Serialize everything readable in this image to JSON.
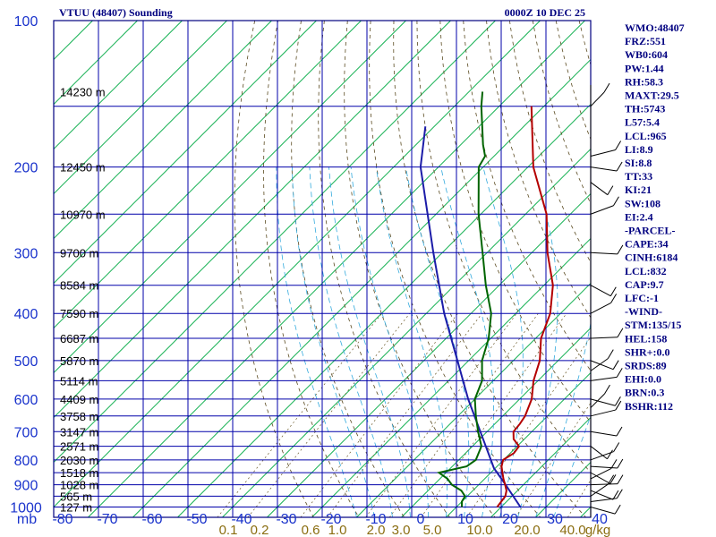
{
  "header": {
    "station": "VTUU (48407) Sounding",
    "time": "0000Z 10 DEC 25"
  },
  "indices": [
    "WMO:48407",
    "FRZ:551",
    "WB0:604",
    "PW:1.44",
    "RH:58.3",
    "MAXT:29.5",
    "TH:5743",
    "L57:5.4",
    "LCL:965",
    "LI:8.9",
    "SI:8.8",
    "TT:33",
    "KI:21",
    "SW:108",
    "EI:2.4",
    "-PARCEL-",
    "CAPE:34",
    "CINH:6184",
    "LCL:832",
    "CAP:9.7",
    "LFC:-1",
    "-WIND-",
    "STM:135/15",
    "HEL:158",
    "SHR+:0.0",
    "SRDS:89",
    "EHI:0.0",
    "BRN:0.3",
    "BSHR:112"
  ],
  "chart_data": {
    "type": "skew-t",
    "title": "VTUU (48407) Sounding",
    "ylabel": "mb",
    "pressure_ticks": [
      100,
      200,
      300,
      400,
      500,
      600,
      700,
      800,
      900,
      1000
    ],
    "pressure_labels": [
      "100",
      "200",
      "300",
      "400",
      "500",
      "600",
      "700",
      "800",
      "900",
      "1000"
    ],
    "temp_ticks": [
      -80,
      -70,
      -60,
      -50,
      -40,
      -30,
      -20,
      -10,
      0,
      10,
      20,
      30,
      40
    ],
    "temp_labels": [
      "-80",
      "-70",
      "-60",
      "-50",
      "-40",
      "-30",
      "-20",
      "-10",
      "0",
      "10",
      "20",
      "30",
      "40"
    ],
    "mixing_ratio_labels": [
      "0.1",
      "0.2",
      "0.6",
      "1.0",
      "2.0",
      "3.0",
      "5.0",
      "10.0",
      "20.0",
      "40.0",
      "g/kg"
    ],
    "height_labels": [
      {
        "p": 140,
        "label": "14230 m"
      },
      {
        "p": 200,
        "label": "12450 m"
      },
      {
        "p": 250,
        "label": "10970 m"
      },
      {
        "p": 300,
        "label": "9700 m"
      },
      {
        "p": 350,
        "label": "8584 m"
      },
      {
        "p": 400,
        "label": "7590 m"
      },
      {
        "p": 450,
        "label": "6687 m"
      },
      {
        "p": 500,
        "label": "5870 m"
      },
      {
        "p": 550,
        "label": "5114 m"
      },
      {
        "p": 600,
        "label": "4409 m"
      },
      {
        "p": 650,
        "label": "3758 m"
      },
      {
        "p": 700,
        "label": "3147 m"
      },
      {
        "p": 750,
        "label": "2571 m"
      },
      {
        "p": 800,
        "label": "2030 m"
      },
      {
        "p": 850,
        "label": "1518 m"
      },
      {
        "p": 900,
        "label": "1028 m"
      },
      {
        "p": 950,
        "label": "565 m"
      },
      {
        "p": 1000,
        "label": "127 m"
      }
    ],
    "temperature": [
      {
        "p": 1000,
        "t": 19.1
      },
      {
        "p": 975,
        "t": 18.8
      },
      {
        "p": 950,
        "t": 18.5
      },
      {
        "p": 925,
        "t": 17.5
      },
      {
        "p": 900,
        "t": 15.9
      },
      {
        "p": 875,
        "t": 14.2
      },
      {
        "p": 850,
        "t": 12.6
      },
      {
        "p": 825,
        "t": 11.0
      },
      {
        "p": 800,
        "t": 9.9
      },
      {
        "p": 775,
        "t": 10.8
      },
      {
        "p": 750,
        "t": 10.4
      },
      {
        "p": 725,
        "t": 7.6
      },
      {
        "p": 700,
        "t": 5.9
      },
      {
        "p": 675,
        "t": 5.6
      },
      {
        "p": 650,
        "t": 5.0
      },
      {
        "p": 600,
        "t": 2.7
      },
      {
        "p": 550,
        "t": -1.0
      },
      {
        "p": 500,
        "t": -4.1
      },
      {
        "p": 450,
        "t": -8.8
      },
      {
        "p": 400,
        "t": -12.3
      },
      {
        "p": 350,
        "t": -18.0
      },
      {
        "p": 300,
        "t": -26.5
      },
      {
        "p": 250,
        "t": -35.3
      },
      {
        "p": 200,
        "t": -48.8
      },
      {
        "p": 150,
        "t": -62.8
      }
    ],
    "dewpoint": [
      {
        "p": 1000,
        "t": 11.2
      },
      {
        "p": 975,
        "t": 10.0
      },
      {
        "p": 950,
        "t": 9.5
      },
      {
        "p": 925,
        "t": 7.4
      },
      {
        "p": 900,
        "t": 4.0
      },
      {
        "p": 875,
        "t": 1.7
      },
      {
        "p": 850,
        "t": -1.6
      },
      {
        "p": 825,
        "t": 3.2
      },
      {
        "p": 800,
        "t": 3.8
      },
      {
        "p": 750,
        "t": 2.0
      },
      {
        "p": 700,
        "t": -2.0
      },
      {
        "p": 650,
        "t": -6.0
      },
      {
        "p": 600,
        "t": -10.0
      },
      {
        "p": 550,
        "t": -12.5
      },
      {
        "p": 500,
        "t": -17.0
      },
      {
        "p": 450,
        "t": -20.5
      },
      {
        "p": 400,
        "t": -25.5
      },
      {
        "p": 350,
        "t": -33.0
      },
      {
        "p": 300,
        "t": -41.0
      },
      {
        "p": 250,
        "t": -50.5
      },
      {
        "p": 200,
        "t": -61.0
      },
      {
        "p": 190,
        "t": -62.0
      },
      {
        "p": 180,
        "t": -65.0
      },
      {
        "p": 150,
        "t": -74.0
      },
      {
        "p": 140,
        "t": -77.0
      }
    ],
    "parcel": [
      {
        "p": 1000,
        "t": 24.3
      },
      {
        "p": 900,
        "t": 16.0
      },
      {
        "p": 832,
        "t": 9.7
      },
      {
        "p": 700,
        "t": -1.5
      },
      {
        "p": 600,
        "t": -11.5
      },
      {
        "p": 500,
        "t": -22.5
      },
      {
        "p": 400,
        "t": -36.0
      },
      {
        "p": 300,
        "t": -52.0
      },
      {
        "p": 200,
        "t": -74.0
      },
      {
        "p": 165,
        "t": -82.0
      }
    ]
  },
  "colors": {
    "frame": "#000080",
    "isobar": "#0000aa",
    "isotherm": "#00aa44",
    "dry_adiabat": "#5a4a20",
    "moist_adiabat": "#33aadd",
    "temperature": "#b40000",
    "dewpoint": "#006400",
    "parcel": "#1c1ca8"
  }
}
